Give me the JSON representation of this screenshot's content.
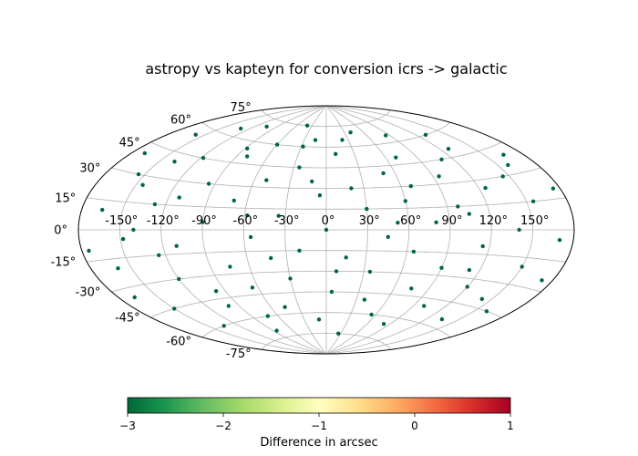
{
  "chart_data": {
    "type": "scatter",
    "title": "astropy vs kapteyn for conversion icrs -> galactic",
    "projection": "aitoff",
    "grid": true,
    "lon_ticks": [
      "-150°",
      "-120°",
      "-90°",
      "-60°",
      "-30°",
      "0°",
      "30°",
      "60°",
      "90°",
      "120°",
      "150°"
    ],
    "lat_ticks": [
      "-75°",
      "-60°",
      "-45°",
      "-30°",
      "-15°",
      "0°",
      "15°",
      "30°",
      "45°",
      "60°",
      "75°"
    ],
    "colorbar": {
      "label": "Difference in arcsec",
      "tick_labels": [
        "−3",
        "−2",
        "−1",
        "0",
        "1"
      ],
      "vmin": -3,
      "vmax": 1,
      "colormap": "RdYlGn_r",
      "point_color": "#006837"
    },
    "series": [
      {
        "value_arcsec": -3,
        "points_lon_lat_deg": [
          [
            -170,
            40
          ],
          [
            -165,
            10
          ],
          [
            -160,
            -20
          ],
          [
            -158,
            55
          ],
          [
            -150,
            -45
          ],
          [
            -145,
            25
          ],
          [
            -140,
            0
          ],
          [
            -135,
            -60
          ],
          [
            -130,
            65
          ],
          [
            -128,
            15
          ],
          [
            -120,
            -30
          ],
          [
            -118,
            45
          ],
          [
            -110,
            -10
          ],
          [
            -105,
            70
          ],
          [
            -100,
            -50
          ],
          [
            -95,
            30
          ],
          [
            -90,
            5
          ],
          [
            -85,
            -70
          ],
          [
            -80,
            50
          ],
          [
            -75,
            -25
          ],
          [
            -70,
            20
          ],
          [
            -65,
            -40
          ],
          [
            -60,
            60
          ],
          [
            -55,
            -5
          ],
          [
            -50,
            35
          ],
          [
            -45,
            -55
          ],
          [
            -40,
            75
          ],
          [
            -35,
            10
          ],
          [
            -30,
            -35
          ],
          [
            -25,
            45
          ],
          [
            -20,
            -15
          ],
          [
            -15,
            65
          ],
          [
            -10,
            -65
          ],
          [
            -5,
            25
          ],
          [
            0,
            0
          ],
          [
            5,
            -45
          ],
          [
            10,
            55
          ],
          [
            15,
            -20
          ],
          [
            20,
            30
          ],
          [
            25,
            -75
          ],
          [
            30,
            15
          ],
          [
            35,
            -30
          ],
          [
            40,
            70
          ],
          [
            45,
            -5
          ],
          [
            50,
            40
          ],
          [
            55,
            -60
          ],
          [
            60,
            20
          ],
          [
            65,
            -15
          ],
          [
            70,
            50
          ],
          [
            75,
            -40
          ],
          [
            80,
            5
          ],
          [
            85,
            65
          ],
          [
            90,
            -25
          ],
          [
            95,
            35
          ],
          [
            100,
            -50
          ],
          [
            105,
            10
          ],
          [
            110,
            45
          ],
          [
            115,
            -10
          ],
          [
            120,
            -35
          ],
          [
            125,
            25
          ],
          [
            130,
            60
          ],
          [
            135,
            -55
          ],
          [
            140,
            0
          ],
          [
            145,
            30
          ],
          [
            150,
            -20
          ],
          [
            155,
            15
          ],
          [
            160,
            -45
          ],
          [
            165,
            40
          ],
          [
            170,
            -5
          ],
          [
            175,
            20
          ],
          [
            -175,
            -10
          ],
          [
            -168,
            -35
          ],
          [
            -155,
            30
          ],
          [
            -148,
            -5
          ],
          [
            -138,
            40
          ],
          [
            -125,
            -15
          ],
          [
            -112,
            20
          ],
          [
            -98,
            -40
          ],
          [
            -88,
            55
          ],
          [
            -72,
            -60
          ],
          [
            -58,
            10
          ],
          [
            -42,
            -20
          ],
          [
            -28,
            60
          ],
          [
            -12,
            35
          ],
          [
            8,
            -30
          ],
          [
            22,
            65
          ],
          [
            38,
            -50
          ],
          [
            52,
            5
          ],
          [
            68,
            30
          ],
          [
            82,
            -65
          ],
          [
            98,
            15
          ],
          [
            112,
            -25
          ],
          [
            128,
            50
          ],
          [
            142,
            -40
          ],
          [
            158,
            35
          ],
          [
            172,
            -25
          ]
        ]
      }
    ]
  }
}
